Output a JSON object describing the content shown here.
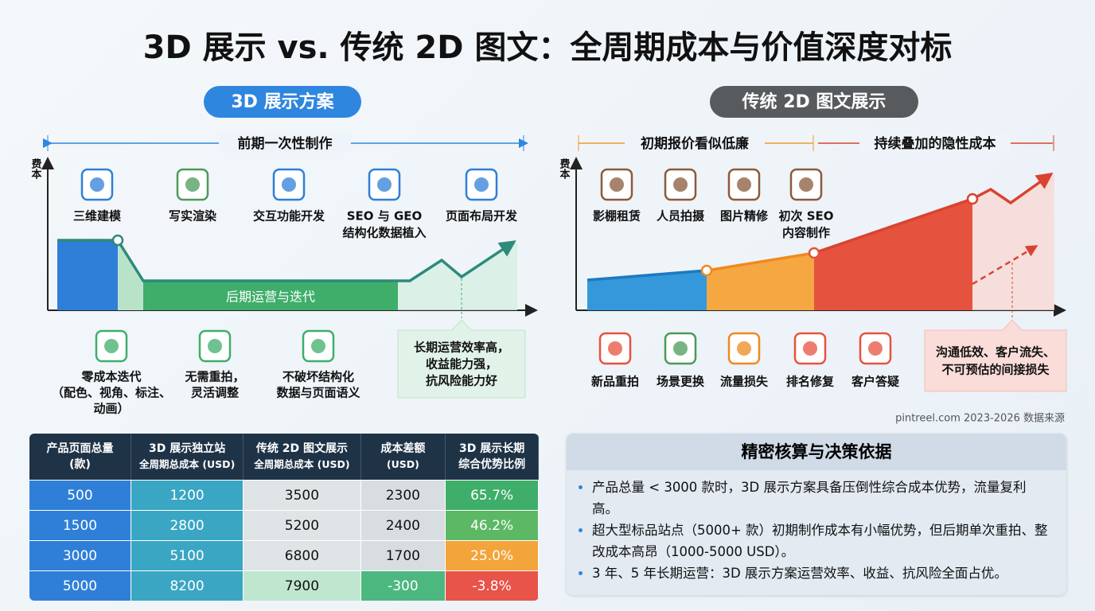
{
  "title": "3D 展示 vs. 传统 2D 图文：全周期成本与价值深度对标",
  "left": {
    "badge": "3D 展示方案",
    "span_label": "前期一次性制作",
    "axis_label": "费本",
    "items": [
      [
        "三维建模"
      ],
      [
        "写实渲染"
      ],
      [
        "交互功能开发"
      ],
      [
        "SEO 与 GEO",
        "结构化数据植入"
      ],
      [
        "页面布局开发"
      ]
    ],
    "band_label": "后期运营与迭代",
    "benefits": [
      [
        "零成本迭代",
        "（配色、视角、标注、",
        "动画）"
      ],
      [
        "无需重拍，",
        "灵活调整"
      ],
      [
        "不破坏结构化",
        "数据与页面语义"
      ]
    ],
    "callout": [
      "长期运营效率高，",
      "收益能力强，",
      "抗风险能力好"
    ]
  },
  "right": {
    "badge": "传统 2D 图文展示",
    "span_labels": [
      "初期报价看似低廉",
      "持续叠加的隐性成本"
    ],
    "axis_label": "费本",
    "items": [
      [
        "影棚租赁"
      ],
      [
        "人员拍摄"
      ],
      [
        "图片精修"
      ],
      [
        "初次 SEO",
        "内容制作"
      ]
    ],
    "costs": [
      "新品重拍",
      "场景更换",
      "流量损失",
      "排名修复",
      "客户答疑"
    ],
    "callout": [
      "沟通低效、客户流失、",
      "不可预估的间接损失"
    ]
  },
  "source": "pintreel.com 2023-2026 数据来源",
  "table": {
    "headers": [
      [
        "产品页面总量",
        "(款)"
      ],
      [
        "3D 展示独立站",
        "全周期总成本 (USD)"
      ],
      [
        "传统 2D 图文展示",
        "全周期总成本 (USD)"
      ],
      [
        "成本差额",
        "(USD)"
      ],
      [
        "3D 展示长期",
        "综合优势比例"
      ]
    ],
    "rows": [
      [
        "500",
        "1200",
        "3500",
        "2300",
        "65.7%"
      ],
      [
        "1500",
        "2800",
        "5200",
        "2400",
        "46.2%"
      ],
      [
        "3000",
        "5100",
        "6800",
        "1700",
        "25.0%"
      ],
      [
        "5000",
        "8200",
        "7900",
        "-300",
        "-3.8%"
      ]
    ]
  },
  "notes": {
    "title": "精密核算与决策依据",
    "bullets": [
      "产品总量 < 3000 款时，3D 展示方案具备压倒性综合成本优势，流量复利高。",
      "超大型标品站点（5000+ 款）初期制作成本有小幅优势，但后期单次重拍、整改成本高昂（1000-5000 USD）。",
      "3 年、5 年长期运营：3D 展示方案运营效率、收益、抗风险全面占优。"
    ]
  }
}
